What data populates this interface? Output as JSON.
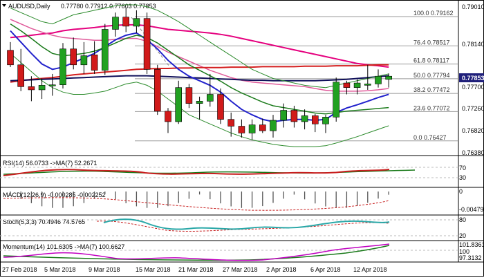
{
  "header": {
    "symbol": "AUDUSD,Daily",
    "ohlc": "0.77780 0.77912 0.77603 0.77853"
  },
  "price_axis": {
    "ticks": [
      "0.79010",
      "0.78140",
      "0.77700",
      "0.77260",
      "0.76820",
      "0.76380"
    ],
    "ticks_visible_labels": [
      "0.79010",
      "0.78140",
      "0.77700",
      "0.77260",
      "0.76820",
      "0.76380"
    ],
    "current_price": "0.77853",
    "current_price_color": "#2e2e8a"
  },
  "fibonacci": {
    "levels": [
      {
        "label": "100.0",
        "price": "0.79162"
      },
      {
        "label": "76.4",
        "price": "0.78517"
      },
      {
        "label": "61.8",
        "price": "0.78117"
      },
      {
        "label": "50.0",
        "price": "0.77794"
      },
      {
        "label": "38.2",
        "price": "0.77472"
      },
      {
        "label": "23.6",
        "price": "0.77072"
      },
      {
        "label": "0.0",
        "price": "0.76427"
      }
    ]
  },
  "x_axis": {
    "dates": [
      "27 Feb 2018",
      "5 Mar 2018",
      "9 Mar 2018",
      "15 Mar 2018",
      "21 Mar 2018",
      "27 Mar 2018",
      "2 Apr 2018",
      "6 Apr 2018",
      "12 Apr 2018"
    ]
  },
  "subpanels": {
    "rsi": {
      "label": "RSI(14) 56.0733 ->MA(7) 52.2671",
      "axis": [
        "70",
        "30"
      ]
    },
    "macd": {
      "label": "MACD(12,26,9) -0.000285 -0.002252",
      "axis": [
        "0",
        "-0.00479"
      ]
    },
    "stoch": {
      "label": "Stoch(5,3,3) 70.4946 74.5765",
      "axis": [
        "80",
        "20"
      ]
    },
    "momentum": {
      "label": "Momentum(14) 101.6305 ->MA(7) 100.6627",
      "axis": [
        "101.8361",
        "100",
        "97.3132"
      ]
    }
  },
  "chart_data": {
    "type": "candlestick",
    "title": "AUDUSD,Daily",
    "ylim": [
      0.7615,
      0.7945
    ],
    "candles": [
      {
        "o": 0.7842,
        "h": 0.786,
        "l": 0.7805,
        "c": 0.781
      },
      {
        "o": 0.781,
        "h": 0.7845,
        "l": 0.7752,
        "c": 0.7762
      },
      {
        "o": 0.7762,
        "h": 0.7785,
        "l": 0.773,
        "c": 0.7755
      },
      {
        "o": 0.7755,
        "h": 0.778,
        "l": 0.7735,
        "c": 0.7765
      },
      {
        "o": 0.7764,
        "h": 0.779,
        "l": 0.7742,
        "c": 0.7766
      },
      {
        "o": 0.7766,
        "h": 0.7858,
        "l": 0.7758,
        "c": 0.7845
      },
      {
        "o": 0.7845,
        "h": 0.787,
        "l": 0.78,
        "c": 0.781
      },
      {
        "o": 0.781,
        "h": 0.786,
        "l": 0.779,
        "c": 0.783
      },
      {
        "o": 0.7832,
        "h": 0.7862,
        "l": 0.779,
        "c": 0.7798
      },
      {
        "o": 0.7798,
        "h": 0.79,
        "l": 0.7788,
        "c": 0.7888
      },
      {
        "o": 0.7888,
        "h": 0.7925,
        "l": 0.7872,
        "c": 0.7915
      },
      {
        "o": 0.7915,
        "h": 0.7935,
        "l": 0.7882,
        "c": 0.7895
      },
      {
        "o": 0.7895,
        "h": 0.793,
        "l": 0.788,
        "c": 0.7912
      },
      {
        "o": 0.7912,
        "h": 0.7925,
        "l": 0.779,
        "c": 0.78
      },
      {
        "o": 0.78,
        "h": 0.781,
        "l": 0.77,
        "c": 0.7708
      },
      {
        "o": 0.7708,
        "h": 0.7715,
        "l": 0.766,
        "c": 0.7685
      },
      {
        "o": 0.7685,
        "h": 0.7775,
        "l": 0.768,
        "c": 0.776
      },
      {
        "o": 0.776,
        "h": 0.7768,
        "l": 0.7715,
        "c": 0.7725
      },
      {
        "o": 0.7725,
        "h": 0.774,
        "l": 0.769,
        "c": 0.773
      },
      {
        "o": 0.773,
        "h": 0.779,
        "l": 0.7718,
        "c": 0.7745
      },
      {
        "o": 0.7745,
        "h": 0.7758,
        "l": 0.768,
        "c": 0.769
      },
      {
        "o": 0.769,
        "h": 0.7705,
        "l": 0.7652,
        "c": 0.7675
      },
      {
        "o": 0.7675,
        "h": 0.769,
        "l": 0.765,
        "c": 0.766
      },
      {
        "o": 0.766,
        "h": 0.769,
        "l": 0.7645,
        "c": 0.7678
      },
      {
        "o": 0.7678,
        "h": 0.7692,
        "l": 0.766,
        "c": 0.7665
      },
      {
        "o": 0.7665,
        "h": 0.77,
        "l": 0.765,
        "c": 0.7688
      },
      {
        "o": 0.7688,
        "h": 0.7725,
        "l": 0.7672,
        "c": 0.771
      },
      {
        "o": 0.771,
        "h": 0.772,
        "l": 0.7672,
        "c": 0.7685
      },
      {
        "o": 0.7685,
        "h": 0.7712,
        "l": 0.7668,
        "c": 0.7698
      },
      {
        "o": 0.7698,
        "h": 0.7702,
        "l": 0.7662,
        "c": 0.768
      },
      {
        "o": 0.768,
        "h": 0.77,
        "l": 0.766,
        "c": 0.7695
      },
      {
        "o": 0.7695,
        "h": 0.7782,
        "l": 0.7685,
        "c": 0.7772
      },
      {
        "o": 0.777,
        "h": 0.7775,
        "l": 0.7745,
        "c": 0.776
      },
      {
        "o": 0.776,
        "h": 0.7778,
        "l": 0.7745,
        "c": 0.777
      },
      {
        "o": 0.7765,
        "h": 0.781,
        "l": 0.7755,
        "c": 0.7768
      },
      {
        "o": 0.7768,
        "h": 0.78,
        "l": 0.776,
        "c": 0.7785
      },
      {
        "o": 0.7778,
        "h": 0.7791,
        "l": 0.776,
        "c": 0.7785
      }
    ],
    "series": [
      {
        "color": "#e5007e",
        "width": 2,
        "values": [
          0.787,
          0.7872,
          0.7875,
          0.7878,
          0.788,
          0.7885,
          0.7888,
          0.789,
          0.7892,
          0.7895,
          0.7897,
          0.7898,
          0.7898,
          0.7896,
          0.7892,
          0.7888,
          0.7886,
          0.7884,
          0.7882,
          0.788,
          0.7877,
          0.7873,
          0.7868,
          0.7863,
          0.7858,
          0.7853,
          0.7848,
          0.7843,
          0.7838,
          0.7833,
          0.7828,
          0.7823,
          0.7818,
          0.7813,
          0.781,
          0.7808,
          0.7805
        ]
      },
      {
        "color": "#e05a9a",
        "width": 1.5,
        "values": [
          0.791,
          0.79,
          0.789,
          0.7882,
          0.7875,
          0.787,
          0.7868,
          0.7866,
          0.7864,
          0.7864,
          0.7866,
          0.7868,
          0.7868,
          0.7862,
          0.785,
          0.7838,
          0.7828,
          0.7818,
          0.7808,
          0.7798,
          0.779,
          0.7782,
          0.7776,
          0.7772,
          0.777,
          0.7768,
          0.7766,
          0.7764,
          0.7762,
          0.7758,
          0.7754,
          0.7752,
          0.7752,
          0.7752,
          0.7753,
          0.7755,
          0.7758
        ]
      },
      {
        "color": "#d41f1f",
        "width": 2,
        "values": [
          0.7772,
          0.7775,
          0.7778,
          0.778,
          0.7782,
          0.7785,
          0.7788,
          0.779,
          0.7792,
          0.7794,
          0.7796,
          0.7798,
          0.78,
          0.7801,
          0.7802,
          0.7802,
          0.7803,
          0.7803,
          0.7804,
          0.7804,
          0.7804,
          0.7805,
          0.7805,
          0.7805,
          0.7806,
          0.7806,
          0.7806,
          0.7806,
          0.7807,
          0.7807,
          0.7807,
          0.7808,
          0.7808,
          0.7808,
          0.7809,
          0.781,
          0.781
        ]
      },
      {
        "color": "#10105a",
        "width": 2,
        "values": [
          0.7775,
          0.7776,
          0.7777,
          0.7778,
          0.7779,
          0.778,
          0.7781,
          0.7782,
          0.7783,
          0.7784,
          0.7785,
          0.7786,
          0.7786,
          0.7786,
          0.7785,
          0.7784,
          0.7783,
          0.7782,
          0.7781,
          0.778,
          0.7779,
          0.7778,
          0.7777,
          0.7776,
          0.7776,
          0.7775,
          0.7775,
          0.7775,
          0.7775,
          0.7775,
          0.7776,
          0.7777,
          0.7778,
          0.778,
          0.7782,
          0.7784,
          0.7786
        ]
      },
      {
        "color": "#2222cc",
        "width": 2,
        "values": [
          0.7885,
          0.786,
          0.7835,
          0.7812,
          0.78,
          0.7805,
          0.7815,
          0.7825,
          0.7835,
          0.785,
          0.7865,
          0.7875,
          0.788,
          0.7865,
          0.7845,
          0.782,
          0.78,
          0.7785,
          0.7775,
          0.7765,
          0.775,
          0.773,
          0.7712,
          0.77,
          0.769,
          0.7685,
          0.7688,
          0.769,
          0.769,
          0.7688,
          0.769,
          0.7705,
          0.7715,
          0.7722,
          0.773,
          0.7738,
          0.7745
        ]
      },
      {
        "color": "#1a7a1a",
        "width": 1.5,
        "values": [
          0.79,
          0.7885,
          0.7868,
          0.785,
          0.7835,
          0.783,
          0.7832,
          0.7835,
          0.784,
          0.7848,
          0.7858,
          0.7868,
          0.7875,
          0.787,
          0.7858,
          0.7842,
          0.7826,
          0.781,
          0.7798,
          0.7786,
          0.7774,
          0.776,
          0.7748,
          0.7738,
          0.7728,
          0.772,
          0.7716,
          0.7712,
          0.7708,
          0.7704,
          0.7702,
          0.7705,
          0.7708,
          0.771,
          0.7712,
          0.7714,
          0.7716
        ]
      },
      {
        "color": "#2a8a2a",
        "width": 1,
        "values": [
          0.7935,
          0.7925,
          0.7915,
          0.7905,
          0.79,
          0.791,
          0.792,
          0.7925,
          0.793,
          0.7935,
          0.794,
          0.7942,
          0.7942,
          0.7938,
          0.793,
          0.7918,
          0.7905,
          0.789,
          0.7875,
          0.786,
          0.7845,
          0.783,
          0.7815,
          0.78,
          0.779,
          0.778,
          0.7775,
          0.777,
          0.7765,
          0.7762,
          0.776,
          0.7765,
          0.777,
          0.7775,
          0.778,
          0.7785,
          0.779
        ]
      },
      {
        "color": "#2a8a2a",
        "width": 1,
        "values": [
          0.7835,
          0.7815,
          0.7795,
          0.7775,
          0.776,
          0.775,
          0.7745,
          0.7745,
          0.7748,
          0.7752,
          0.776,
          0.7768,
          0.7772,
          0.7765,
          0.7752,
          0.7735,
          0.7718,
          0.77,
          0.769,
          0.768,
          0.767,
          0.766,
          0.7652,
          0.7645,
          0.764,
          0.7635,
          0.7632,
          0.763,
          0.763,
          0.763,
          0.7632,
          0.7638,
          0.7645,
          0.7652,
          0.766,
          0.7668,
          0.7676
        ]
      }
    ]
  }
}
